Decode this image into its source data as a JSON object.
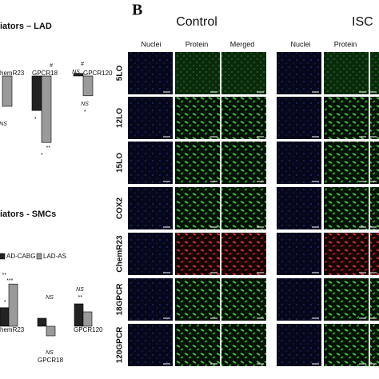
{
  "chart_data": [
    {
      "type": "bar",
      "title": "iators – LAD",
      "categories": [
        "hemR23",
        "GPCR18",
        "GPCR120"
      ],
      "series": [
        {
          "color": "#222222",
          "values": [
            null,
            -1.08,
            0.08
          ]
        },
        {
          "color": "#9a9a9a",
          "values": [
            -0.95,
            -2.08,
            -0.62
          ]
        }
      ],
      "ylim": [
        -2.5,
        0.5
      ],
      "annotations": [
        "NS",
        "#",
        "#",
        "NS",
        "*",
        "**",
        "*",
        "NS",
        "*"
      ]
    },
    {
      "type": "bar",
      "title": "iators - SMCs",
      "categories": [
        "hemR23",
        "GPCR18",
        "GPCR120"
      ],
      "series": [
        {
          "name": "AD-CABG",
          "color": "#222222",
          "values": [
            0.58,
            0.25,
            0.7
          ]
        },
        {
          "name": "LAD-AS",
          "color": "#9a9a9a",
          "values": [
            1.32,
            -0.3,
            0.45
          ]
        }
      ],
      "ylim": [
        -0.8,
        1.7
      ],
      "annotations": [
        "**",
        "***",
        "*",
        "NS",
        "NS",
        "**",
        "NS"
      ]
    }
  ],
  "panel_b": {
    "label": "B",
    "groups": [
      "Control",
      "ISC"
    ],
    "columns": [
      [
        "Nuclei",
        "Protein",
        "Merged"
      ],
      [
        "Nuclei",
        "Protein"
      ]
    ],
    "rows": [
      "5LO",
      "12LO",
      "15LO",
      "COX2",
      "ChemR23",
      "18GPCR",
      "120GPCR"
    ]
  }
}
